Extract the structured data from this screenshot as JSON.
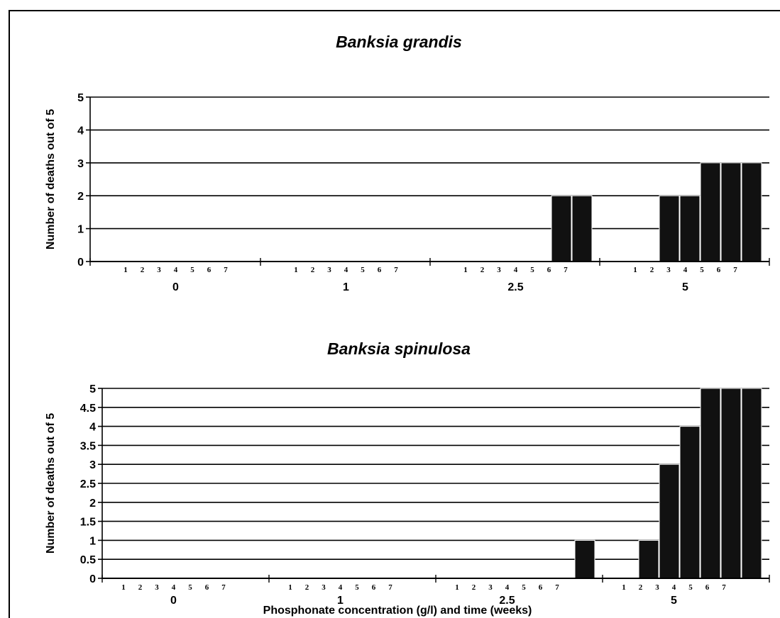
{
  "colors": {
    "bar": "#111111",
    "bar_outline": "#ffffff",
    "grid": "#000000",
    "background": "#ffffff"
  },
  "chart_data": [
    {
      "type": "bar",
      "title": "Banksia grandis",
      "ylabel": "Number of deaths out of 5",
      "xlabel": "",
      "ylim": [
        0,
        5
      ],
      "yticks": [
        "0",
        "1",
        "2",
        "3",
        "4",
        "5"
      ],
      "grid": true,
      "groups": [
        "0",
        "1",
        "2.5",
        "5"
      ],
      "weeks": [
        "1",
        "2",
        "3",
        "4",
        "5",
        "6",
        "7"
      ],
      "series": [
        {
          "group": "0",
          "values": [
            0,
            0,
            0,
            0,
            0,
            0,
            0
          ]
        },
        {
          "group": "1",
          "values": [
            0,
            0,
            0,
            0,
            0,
            0,
            0
          ]
        },
        {
          "group": "2.5",
          "values": [
            0,
            0,
            0,
            0,
            0,
            2,
            2
          ]
        },
        {
          "group": "5",
          "values": [
            0,
            0,
            2,
            2,
            3,
            3,
            3
          ]
        }
      ]
    },
    {
      "type": "bar",
      "title": "Banksia spinulosa",
      "ylabel": "Number of deaths out of 5",
      "xlabel": "Phosphonate concentration (g/l) and time (weeks)",
      "ylim": [
        0,
        5
      ],
      "yticks": [
        "0",
        "0.5",
        "1",
        "1.5",
        "2",
        "2.5",
        "3",
        "3.5",
        "4",
        "4.5",
        "5"
      ],
      "grid": true,
      "groups": [
        "0",
        "1",
        "2.5",
        "5"
      ],
      "weeks": [
        "1",
        "2",
        "3",
        "4",
        "5",
        "6",
        "7"
      ],
      "series": [
        {
          "group": "0",
          "values": [
            0,
            0,
            0,
            0,
            0,
            0,
            0
          ]
        },
        {
          "group": "1",
          "values": [
            0,
            0,
            0,
            0,
            0,
            0,
            0
          ]
        },
        {
          "group": "2.5",
          "values": [
            0,
            0,
            0,
            0,
            0,
            0,
            1
          ]
        },
        {
          "group": "5",
          "values": [
            0,
            1,
            3,
            4,
            5,
            5,
            5
          ]
        }
      ]
    }
  ]
}
